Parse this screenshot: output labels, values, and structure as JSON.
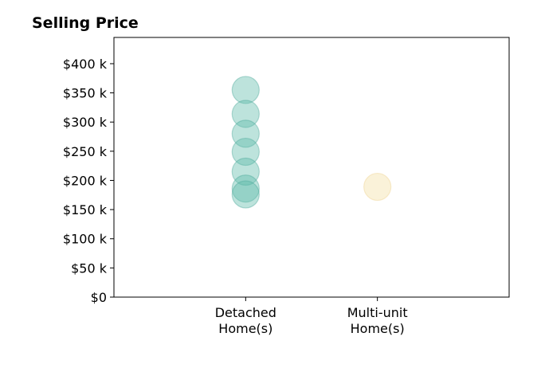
{
  "chart_data": {
    "type": "scatter",
    "title": "Selling Price",
    "xlabel": "",
    "ylabel": "",
    "categories": [
      {
        "line1": "Detached",
        "line2": "Home(s)"
      },
      {
        "line1": "Multi-unit",
        "line2": "Home(s)"
      }
    ],
    "yticks": [
      0,
      50,
      100,
      150,
      200,
      250,
      300,
      350,
      400
    ],
    "ytick_labels": [
      "$0",
      "$50 k",
      "$100 k",
      "$150 k",
      "$200 k",
      "$250 k",
      "$300 k",
      "$350 k",
      "$400 k"
    ],
    "ylim": [
      0,
      445
    ],
    "xlim": [
      -1,
      2
    ],
    "grid": false,
    "series": [
      {
        "category_index": 0,
        "color": "#5bb8a8",
        "stroke": "#45a596",
        "values": [
          355,
          314,
          280,
          249,
          215,
          186,
          176
        ]
      },
      {
        "category_index": 1,
        "color": "#f3dea0",
        "stroke": "#edd08a",
        "values": [
          189
        ]
      }
    ]
  }
}
